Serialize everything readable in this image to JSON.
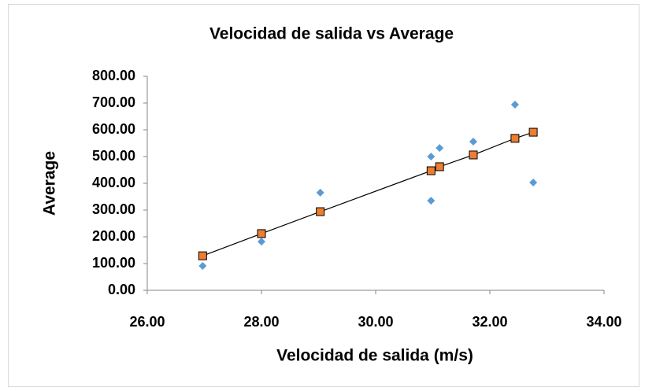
{
  "chart_data": {
    "type": "scatter",
    "title": "Velocidad de salida vs Average",
    "x_label": "Velocidad de salida (m/s)",
    "y_label": "Average",
    "xlim": [
      26,
      34
    ],
    "xticks": [
      {
        "value": 26,
        "label": "26.00"
      },
      {
        "value": 28,
        "label": "28.00"
      },
      {
        "value": 30,
        "label": "30.00"
      },
      {
        "value": 32,
        "label": "32.00"
      },
      {
        "value": 34,
        "label": "34.00"
      }
    ],
    "ylim": [
      0,
      800
    ],
    "yticks": [
      {
        "value": 0,
        "label": "0.00"
      },
      {
        "value": 100,
        "label": "100.00"
      },
      {
        "value": 200,
        "label": "200.00"
      },
      {
        "value": 300,
        "label": "300.00"
      },
      {
        "value": 400,
        "label": "400.00"
      },
      {
        "value": 500,
        "label": "500.00"
      },
      {
        "value": 600,
        "label": "600.00"
      },
      {
        "value": 700,
        "label": "700.00"
      },
      {
        "value": 800,
        "label": "800.00"
      }
    ],
    "grid": false,
    "series": [
      {
        "color": "#5b9bd5",
        "marker": "diamond",
        "x": [
          26.97,
          28.0,
          29.03,
          30.97,
          30.97,
          31.12,
          31.71,
          32.44,
          32.76
        ],
        "values": [
          91,
          182,
          365,
          500,
          335,
          532,
          556,
          694,
          403
        ]
      },
      {
        "color": "#ed7d31",
        "marker": "square",
        "line_color": "#000000",
        "x": [
          26.97,
          28.0,
          29.03,
          30.97,
          31.12,
          31.71,
          32.44,
          32.76
        ],
        "values": [
          129,
          212,
          294,
          447,
          462,
          506,
          568,
          591
        ]
      }
    ]
  }
}
